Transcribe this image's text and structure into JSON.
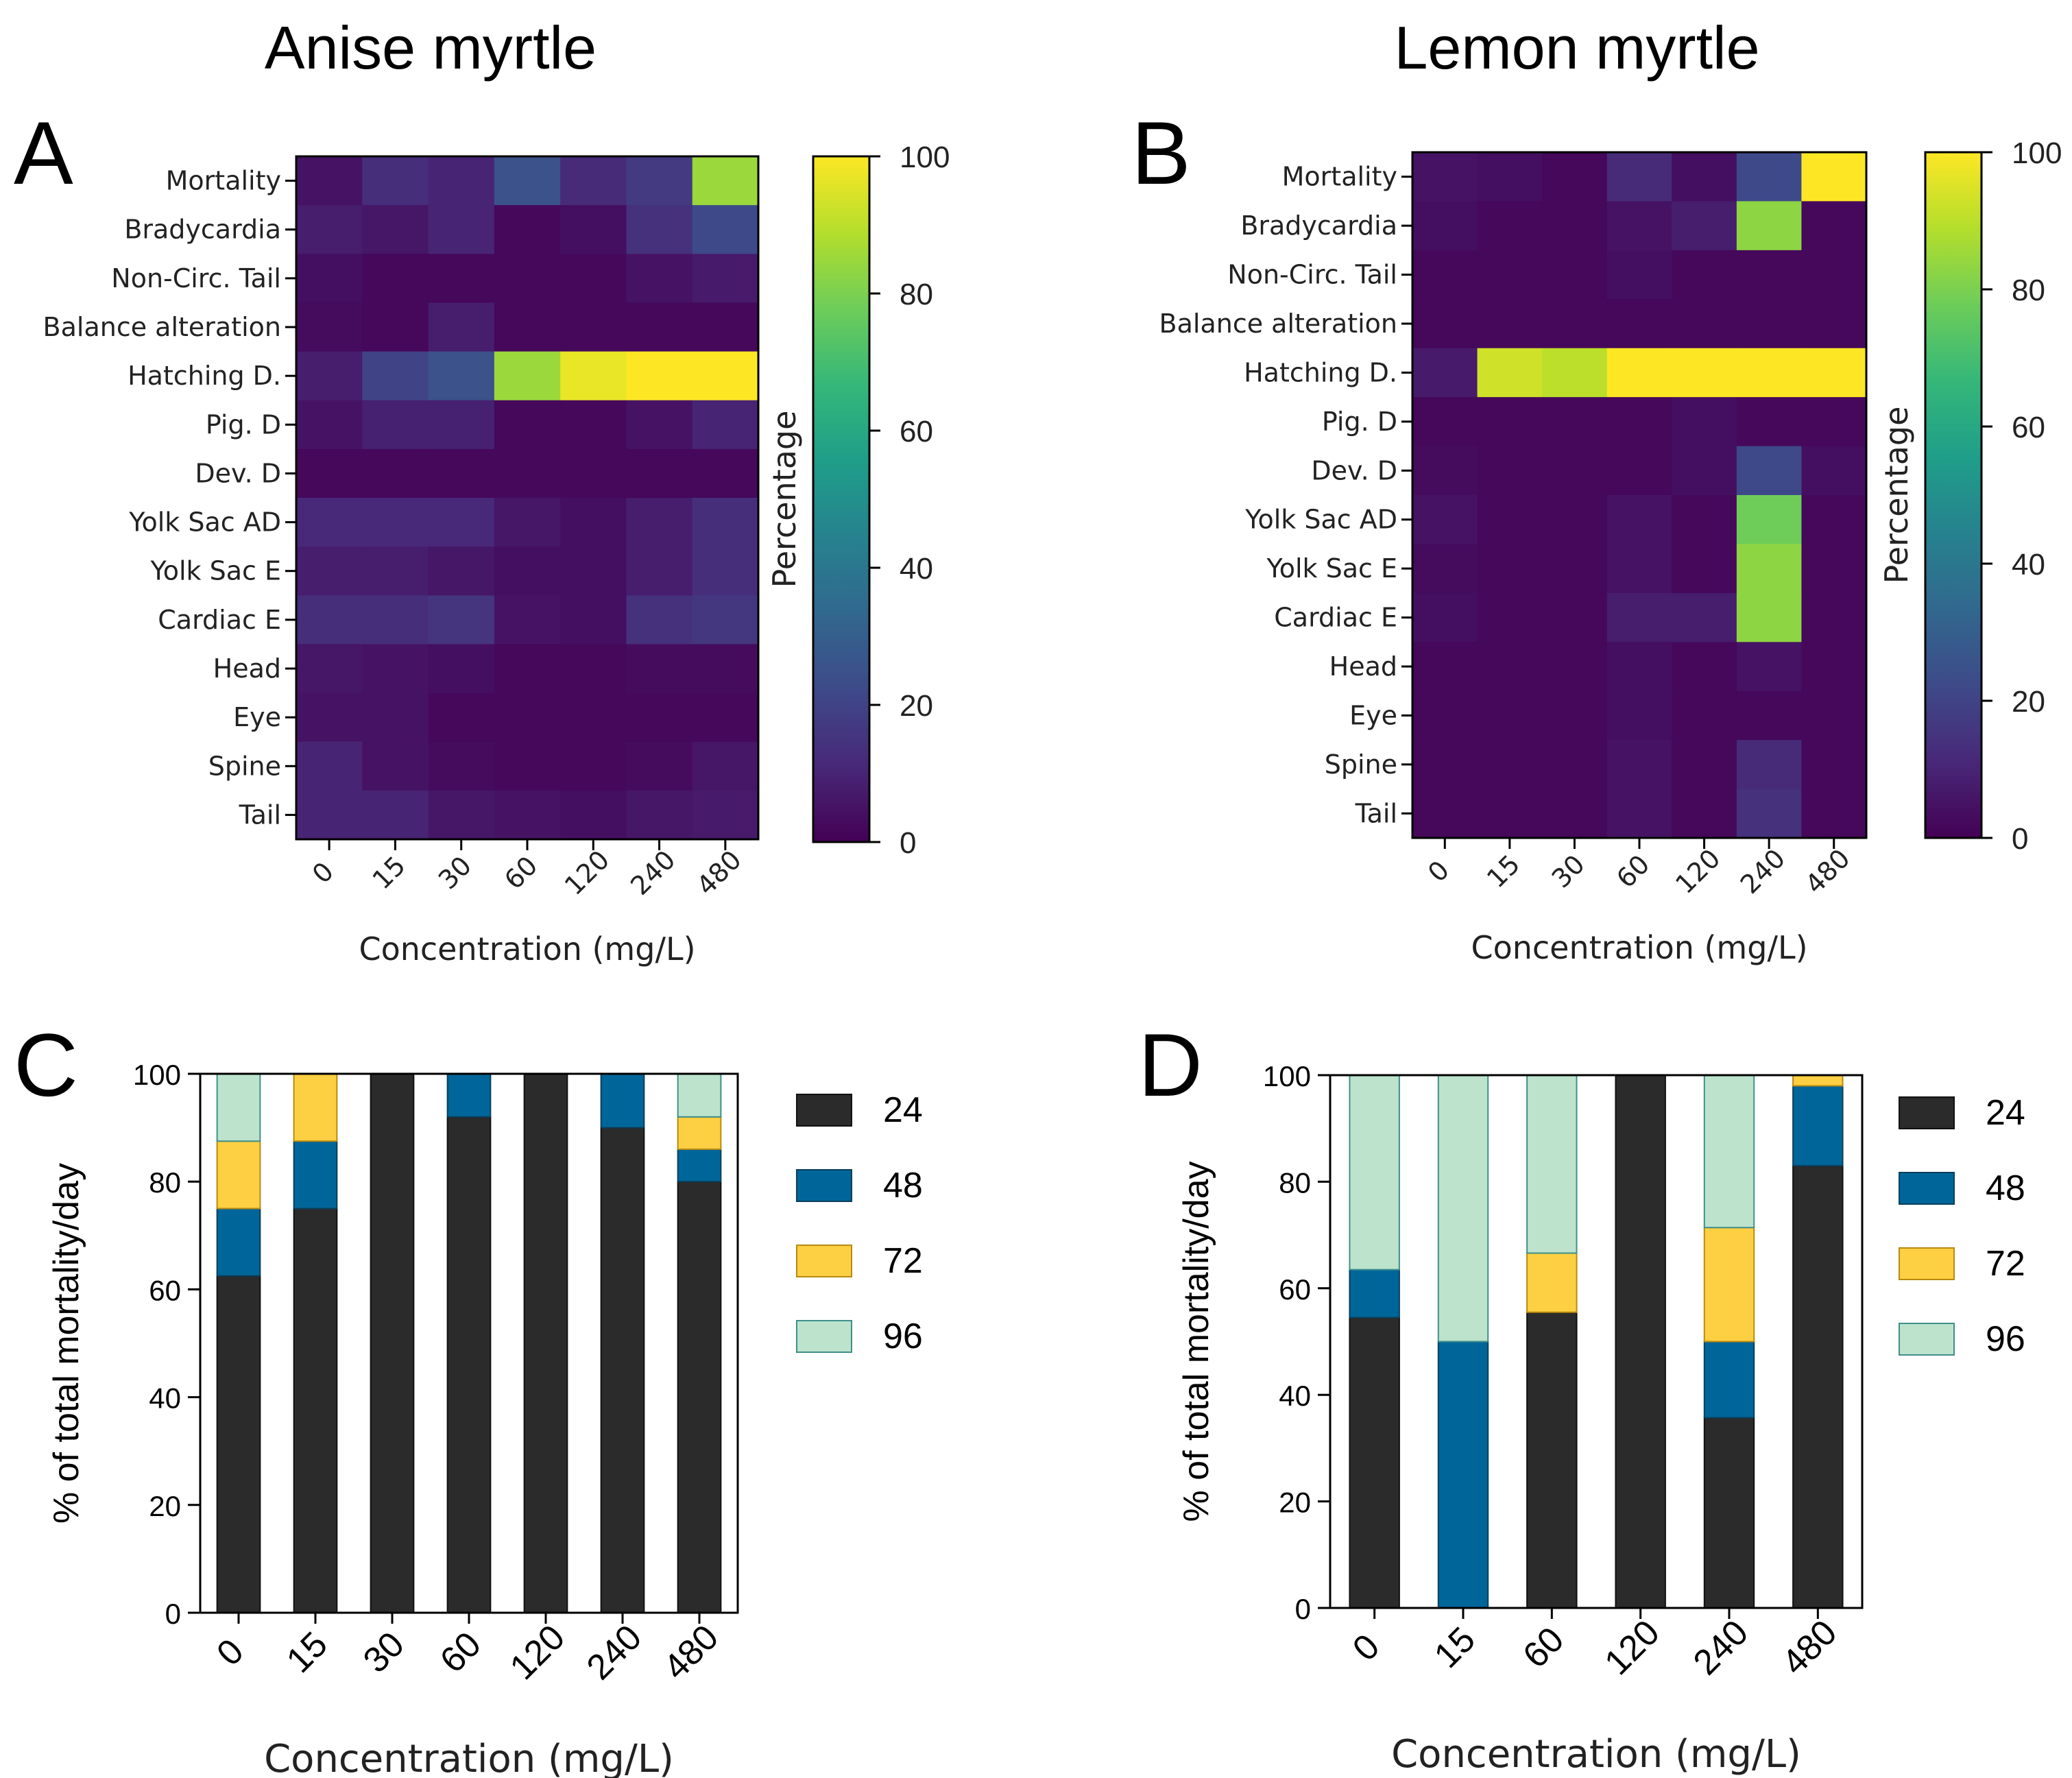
{
  "titles": {
    "anise": "Anise myrtle",
    "lemon": "Lemon myrtle"
  },
  "panels": {
    "a": "A",
    "b": "B",
    "c": "C",
    "d": "D"
  },
  "colors": {
    "s24": "#2b2b2b",
    "s48": "#006699",
    "s72": "#fdd043",
    "s96": "#bde3cd",
    "s96_border": "#3f8f8a",
    "s72_border": "#b98a10"
  },
  "chart_data": [
    {
      "type": "heatmap",
      "panel": "A",
      "title": "Anise myrtle",
      "rows": [
        "Mortality",
        "Bradycardia",
        "Non-Circ. Tail",
        "Balance alteration",
        "Hatching D.",
        "Pig. D",
        "Dev. D",
        "Yolk Sac AD",
        "Yolk Sac E",
        "Cardiac E",
        "Head",
        "Eye",
        "Spine",
        "Tail"
      ],
      "columns": [
        "0",
        "15",
        "30",
        "60",
        "120",
        "240",
        "480"
      ],
      "values": [
        [
          5,
          13,
          10,
          25,
          12,
          17,
          85
        ],
        [
          8,
          6,
          10,
          2,
          4,
          14,
          22
        ],
        [
          4,
          2,
          2,
          2,
          2,
          5,
          7
        ],
        [
          3,
          2,
          8,
          2,
          2,
          2,
          2
        ],
        [
          8,
          20,
          25,
          85,
          97,
          100,
          100
        ],
        [
          5,
          9,
          9,
          2,
          2,
          5,
          10
        ],
        [
          2,
          2,
          2,
          2,
          2,
          2,
          2
        ],
        [
          11,
          11,
          11,
          6,
          4,
          8,
          13
        ],
        [
          8,
          8,
          6,
          4,
          4,
          8,
          13
        ],
        [
          13,
          13,
          15,
          5,
          4,
          14,
          16
        ],
        [
          6,
          5,
          4,
          2,
          2,
          3,
          3
        ],
        [
          5,
          5,
          2,
          2,
          2,
          2,
          2
        ],
        [
          10,
          5,
          3,
          2,
          2,
          3,
          6
        ],
        [
          10,
          10,
          6,
          5,
          4,
          6,
          7
        ]
      ],
      "xlabel": "Concentration (mg/L)",
      "colorbar": {
        "label": "Percentage",
        "ticks": [
          0,
          20,
          40,
          60,
          80,
          100
        ],
        "range": [
          0,
          100
        ]
      }
    },
    {
      "type": "heatmap",
      "panel": "B",
      "title": "Lemon myrtle",
      "rows": [
        "Mortality",
        "Bradycardia",
        "Non-Circ. Tail",
        "Balance alteration",
        "Hatching D.",
        "Pig. D",
        "Dev. D",
        "Yolk Sac AD",
        "Yolk Sac E",
        "Cardiac E",
        "Head",
        "Eye",
        "Spine",
        "Tail"
      ],
      "columns": [
        "0",
        "15",
        "30",
        "60",
        "120",
        "240",
        "480"
      ],
      "values": [
        [
          5,
          4,
          2,
          12,
          4,
          22,
          100
        ],
        [
          4,
          2,
          2,
          5,
          8,
          83,
          2
        ],
        [
          2,
          2,
          2,
          4,
          2,
          2,
          2
        ],
        [
          2,
          2,
          2,
          2,
          2,
          2,
          2
        ],
        [
          7,
          93,
          90,
          100,
          100,
          100,
          100
        ],
        [
          2,
          2,
          2,
          2,
          4,
          2,
          2
        ],
        [
          3,
          2,
          2,
          2,
          4,
          22,
          4
        ],
        [
          5,
          2,
          2,
          5,
          2,
          78,
          2
        ],
        [
          3,
          2,
          2,
          5,
          2,
          83,
          2
        ],
        [
          4,
          2,
          2,
          8,
          8,
          83,
          2
        ],
        [
          2,
          2,
          2,
          4,
          2,
          5,
          2
        ],
        [
          2,
          2,
          2,
          4,
          2,
          2,
          2
        ],
        [
          2,
          2,
          2,
          5,
          2,
          12,
          2
        ],
        [
          2,
          2,
          2,
          5,
          2,
          14,
          2
        ]
      ],
      "xlabel": "Concentration (mg/L)",
      "colorbar": {
        "label": "Percentage",
        "ticks": [
          0,
          20,
          40,
          60,
          80,
          100
        ],
        "range": [
          0,
          100
        ]
      }
    },
    {
      "type": "bar",
      "stacked": true,
      "panel": "C",
      "categories": [
        "0",
        "15",
        "30",
        "60",
        "120",
        "240",
        "480"
      ],
      "series": [
        {
          "name": "24",
          "values": [
            62.5,
            75,
            100,
            92,
            100,
            90,
            80
          ]
        },
        {
          "name": "48",
          "values": [
            12.5,
            12.5,
            0,
            8,
            0,
            10,
            6
          ]
        },
        {
          "name": "72",
          "values": [
            12.5,
            12.5,
            0,
            0,
            0,
            0,
            6
          ]
        },
        {
          "name": "96",
          "values": [
            12.5,
            0,
            0,
            0,
            0,
            0,
            8
          ]
        }
      ],
      "xlabel": "Concentration (mg/L)",
      "ylabel": "% of total mortality/day",
      "ylim": [
        0,
        100
      ],
      "yticks": [
        0,
        20,
        40,
        60,
        80,
        100
      ]
    },
    {
      "type": "bar",
      "stacked": true,
      "panel": "D",
      "categories": [
        "0",
        "15",
        "60",
        "120",
        "240",
        "480"
      ],
      "series": [
        {
          "name": "24",
          "values": [
            54.5,
            0,
            55.5,
            100,
            35.7,
            83
          ]
        },
        {
          "name": "48",
          "values": [
            9,
            50,
            0,
            0,
            14.3,
            15
          ]
        },
        {
          "name": "72",
          "values": [
            0,
            0,
            11.1,
            0,
            21.4,
            2
          ]
        },
        {
          "name": "96",
          "values": [
            36.5,
            50,
            33.4,
            0,
            28.6,
            0
          ]
        }
      ],
      "xlabel": "Concentration (mg/L)",
      "ylabel": "% of total mortality/day",
      "ylim": [
        0,
        100
      ],
      "yticks": [
        0,
        20,
        40,
        60,
        80,
        100
      ]
    }
  ]
}
